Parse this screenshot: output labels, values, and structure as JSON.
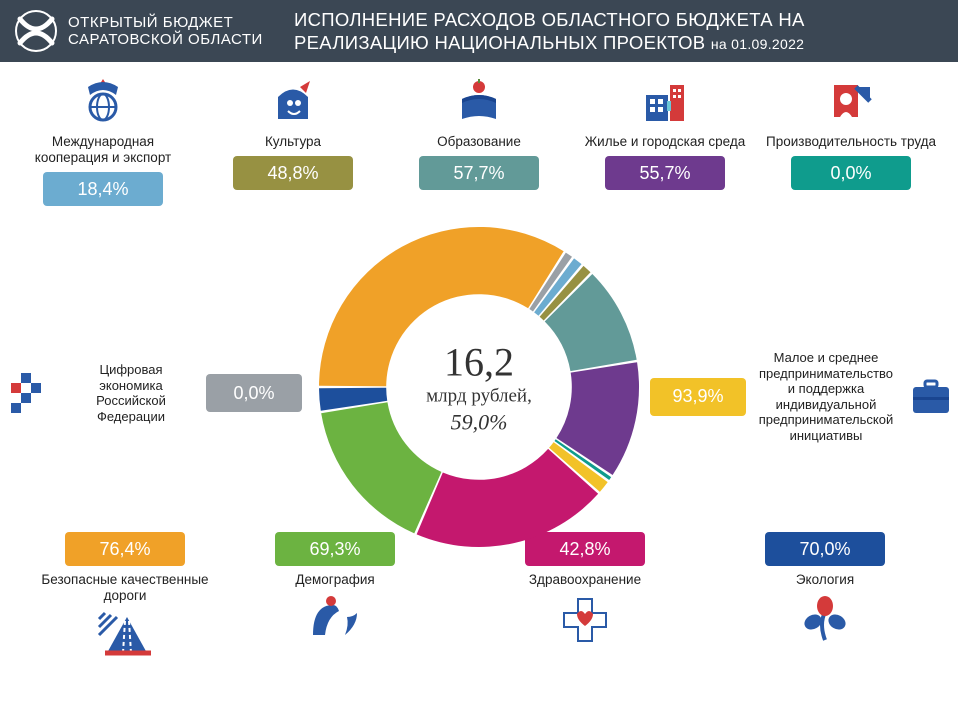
{
  "header": {
    "logo_line1": "ОТКРЫТЫЙ БЮДЖЕТ",
    "logo_line2": "САРАТОВСКОЙ ОБЛАСТИ",
    "title_line1": "ИСПОЛНЕНИЕ РАСХОДОВ ОБЛАСТНОГО БЮДЖЕТА НА",
    "title_line2": "РЕАЛИЗАЦИЮ НАЦИОНАЛЬНЫХ ПРОЕКТОВ",
    "date": "на 01.09.2022",
    "bg": "#3b4754"
  },
  "center": {
    "value": "16,2",
    "unit": "млрд рублей,",
    "percent": "59,0%"
  },
  "projects": {
    "intl": {
      "label": "Международная кооперация и экспорт",
      "pct": "18,4%",
      "color": "#6cacd0"
    },
    "culture": {
      "label": "Культура",
      "pct": "48,8%",
      "color": "#979142"
    },
    "education": {
      "label": "Образование",
      "pct": "57,7%",
      "color": "#629a98"
    },
    "housing": {
      "label": "Жилье и городская среда",
      "pct": "55,7%",
      "color": "#6e3a8e"
    },
    "productivity": {
      "label": "Производительность труда",
      "pct": "0,0%",
      "color": "#0f9c8d"
    },
    "digital": {
      "label": "Цифровая экономика Российской Федерации",
      "pct": "0,0%",
      "color": "#9aa0a6"
    },
    "sme": {
      "label": "Малое и среднее предпринимательство и поддержка индивидуальной предпринимательской инициативы",
      "pct": "93,9%",
      "color": "#f2c228"
    },
    "roads": {
      "label": "Безопасные качественные дороги",
      "pct": "76,4%",
      "color": "#f0a128"
    },
    "demography": {
      "label": "Демография",
      "pct": "69,3%",
      "color": "#6cb341"
    },
    "health": {
      "label": "Здравоохранение",
      "pct": "42,8%",
      "color": "#c4186e"
    },
    "ecology": {
      "label": "Экология",
      "pct": "70,0%",
      "color": "#1d4f9c"
    }
  },
  "donut": {
    "slices": [
      {
        "color": "#f0a128",
        "value": 34.0
      },
      {
        "color": "#9aa0a6",
        "value": 1.0
      },
      {
        "color": "#6cacd0",
        "value": 1.2
      },
      {
        "color": "#979142",
        "value": 1.2
      },
      {
        "color": "#629a98",
        "value": 10.0
      },
      {
        "color": "#6e3a8e",
        "value": 12.0
      },
      {
        "color": "#0f9c8d",
        "value": 0.6
      },
      {
        "color": "#f2c228",
        "value": 1.5
      },
      {
        "color": "#c4186e",
        "value": 20.0
      },
      {
        "color": "#6cb341",
        "value": 16.0
      },
      {
        "color": "#1d4f9c",
        "value": 2.5
      }
    ],
    "inner_radius": 0.58,
    "start_angle_deg": 180
  }
}
